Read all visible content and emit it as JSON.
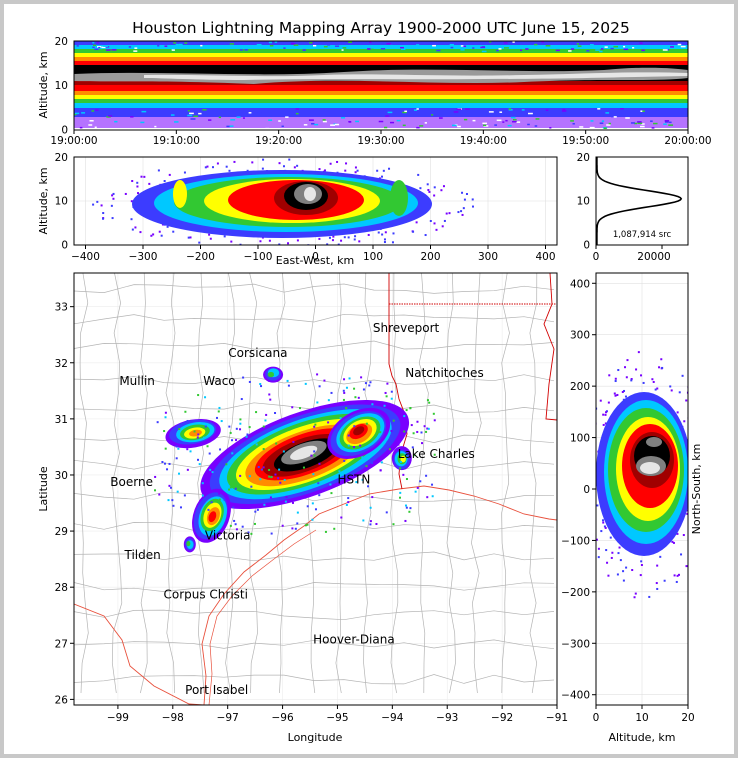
{
  "title": "Houston Lightning Mapping Array 1900-2000 UTC June 15, 2025",
  "time_panel": {
    "ylabel": "Altitude, km",
    "y_ticks": [
      "0",
      "10",
      "20"
    ],
    "x_ticks": [
      "19:00:00",
      "19:10:00",
      "19:20:00",
      "19:30:00",
      "19:40:00",
      "19:50:00",
      "20:00:00"
    ]
  },
  "ew_panel": {
    "ylabel": "Altitude, km",
    "xlabel": "East-West, km",
    "y_ticks": [
      "0",
      "10",
      "20"
    ],
    "x_ticks": [
      "−400",
      "−300",
      "−200",
      "−100",
      "0",
      "100",
      "200",
      "300",
      "400"
    ]
  },
  "hist_panel": {
    "count_label": "1,087,914 src",
    "y_ticks": [
      "0",
      "10",
      "20"
    ],
    "x_ticks": [
      "0",
      "20000"
    ]
  },
  "map_panel": {
    "xlabel": "Longitude",
    "ylabel": "Latitude",
    "x_ticks": [
      "−99",
      "−98",
      "−97",
      "−96",
      "−95",
      "−94",
      "−93",
      "−92",
      "−91"
    ],
    "y_ticks": [
      "26",
      "27",
      "28",
      "29",
      "30",
      "31",
      "32",
      "33"
    ],
    "cities": [
      {
        "name": "Corsicana",
        "lon": -96.45,
        "lat": 32.1,
        "color": "#000000"
      },
      {
        "name": "Shreveport",
        "lon": -93.75,
        "lat": 32.55,
        "color": "#000000"
      },
      {
        "name": "Mullin",
        "lon": -98.65,
        "lat": 31.6,
        "color": "#ff8c3c"
      },
      {
        "name": "Waco",
        "lon": -97.15,
        "lat": 31.6,
        "color": "#000000"
      },
      {
        "name": "Natchitoches",
        "lon": -93.05,
        "lat": 31.75,
        "color": "#000000"
      },
      {
        "name": "Lake Charles",
        "lon": -93.2,
        "lat": 30.3,
        "color": "#000000"
      },
      {
        "name": "HSTN",
        "lon": -94.7,
        "lat": 29.85,
        "color": "#e0a030"
      },
      {
        "name": "Boerne",
        "lon": -98.75,
        "lat": 29.8,
        "color": "#000000"
      },
      {
        "name": "Victoria",
        "lon": -97.0,
        "lat": 28.85,
        "color": "#000000"
      },
      {
        "name": "Tilden",
        "lon": -98.55,
        "lat": 28.5,
        "color": "#000000"
      },
      {
        "name": "Corpus Christi",
        "lon": -97.4,
        "lat": 27.8,
        "color": "#000000"
      },
      {
        "name": "Hoover-Diana",
        "lon": -94.7,
        "lat": 27.0,
        "color": "#1414d2"
      },
      {
        "name": "Port Isabel",
        "lon": -97.2,
        "lat": 26.1,
        "color": "#000000"
      }
    ]
  },
  "ns_panel": {
    "ylabel": "North-South, km",
    "xlabel": "Altitude, km",
    "y_ticks": [
      "−400",
      "−300",
      "−200",
      "−100",
      "0",
      "100",
      "200",
      "300",
      "400"
    ],
    "x_ticks": [
      "0",
      "10",
      "20"
    ]
  },
  "chart_data": {
    "type": "heatmap",
    "title": "Houston Lightning Mapping Array 1900-2000 UTC June 15, 2025",
    "total_sources": 1087914,
    "time_range": [
      "19:00:00",
      "20:00:00"
    ],
    "altitude_range_km": [
      0,
      20
    ],
    "ew_range_km": [
      -420,
      420
    ],
    "ns_range_km": [
      -420,
      420
    ],
    "lon_range": [
      -99.8,
      -91
    ],
    "lat_range": [
      25.9,
      33.6
    ],
    "altitude_profile": {
      "peak_altitude_km": 10.5,
      "peak_count_approx": 27000
    },
    "colormap": [
      "#ffffff",
      "#7800ff",
      "#3c3cff",
      "#00c8ff",
      "#00ff64",
      "#32c832",
      "#ffff00",
      "#ff8c00",
      "#ff0000",
      "#a00000",
      "#000000",
      "#808080",
      "#e6e6e6"
    ]
  }
}
